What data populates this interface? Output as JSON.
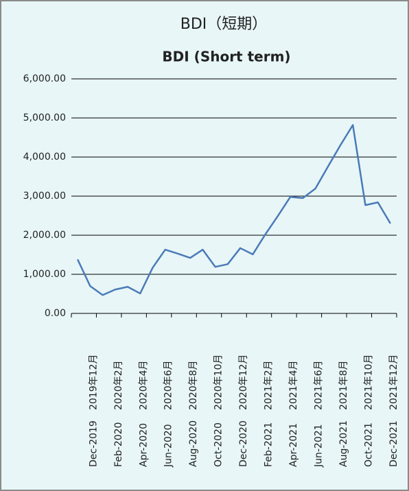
{
  "chart_data": {
    "type": "line",
    "title": "BDI（短期）",
    "subtitle": "BDI (Short term)",
    "categories": [
      null,
      "2019年12月",
      null,
      "2020年2月",
      null,
      "2020年4月",
      null,
      "2020年6月",
      null,
      "2020年8月",
      null,
      "2020年10月",
      null,
      "2020年12月",
      null,
      "2021年2月",
      null,
      "2021年4月",
      null,
      "2021年6月",
      null,
      "2021年8月",
      null,
      "2021年10月",
      null,
      "2021年12月"
    ],
    "categories_en": [
      null,
      "Dec-2019",
      null,
      "Feb-2020",
      null,
      "Apr-2020",
      null,
      "Jun-2020",
      null,
      "Aug-2020",
      null,
      "Oct-2020",
      null,
      "Dec-2020",
      null,
      "Feb-2021",
      null,
      "Apr-2021",
      null,
      "Jun-2021",
      null,
      "Aug-2021",
      null,
      "Oct-2021",
      null,
      "Dec-2021"
    ],
    "series": [
      {
        "name": "BDI",
        "color": "#4a7ab8",
        "values": [
          1380,
          700,
          470,
          610,
          680,
          510,
          1170,
          1630,
          1530,
          1420,
          1630,
          1190,
          1260,
          1670,
          1510,
          2020,
          2490,
          2980,
          2950,
          3190,
          3750,
          4300,
          4820,
          2770,
          2840,
          2300
        ]
      }
    ],
    "ylim": [
      0,
      6000
    ],
    "yticks": [
      {
        "value": 0,
        "label": "0.00"
      },
      {
        "value": 1000,
        "label": "1,000.00"
      },
      {
        "value": 2000,
        "label": "2,000.00"
      },
      {
        "value": 3000,
        "label": "3,000.00"
      },
      {
        "value": 4000,
        "label": "4,000.00"
      },
      {
        "value": 5000,
        "label": "5,000.00"
      },
      {
        "value": 6000,
        "label": "6,000.00"
      }
    ],
    "grid": true
  }
}
